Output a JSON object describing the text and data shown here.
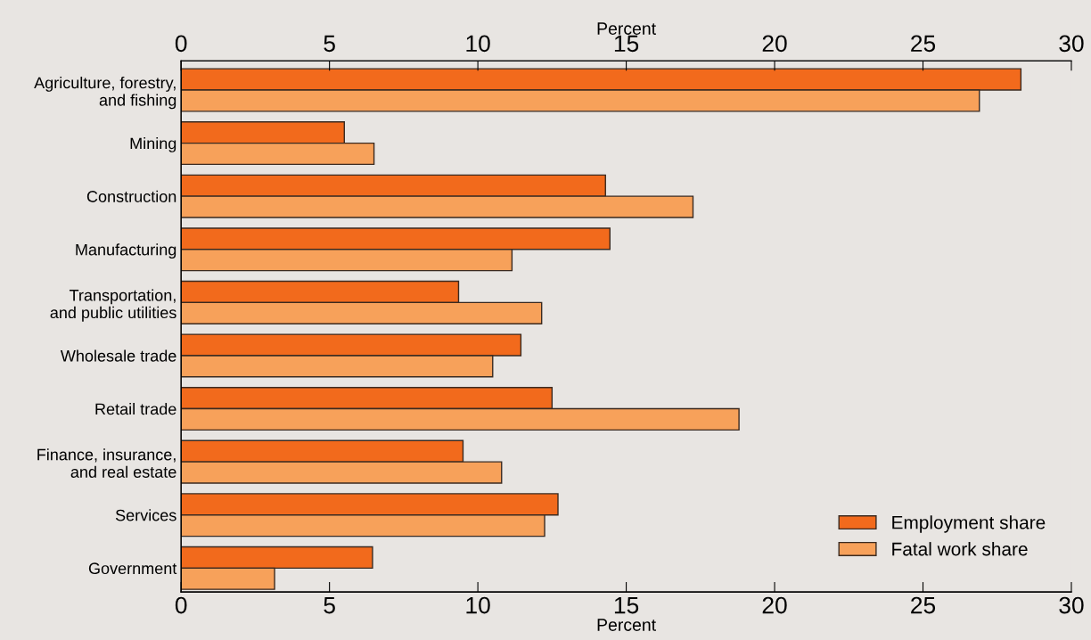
{
  "chart_data": {
    "type": "bar",
    "orientation": "horizontal",
    "categories": [
      "Agriculture, forestry,\nand fishing",
      "Mining",
      "Construction",
      "Manufacturing",
      "Transportation,\nand public utilities",
      "Wholesale trade",
      "Retail trade",
      "Finance, insurance,\nand real estate",
      "Services",
      "Government"
    ],
    "series": [
      {
        "name": "Employment share",
        "color": "#f26a1c",
        "values": [
          28.3,
          5.5,
          14.3,
          14.45,
          9.35,
          11.45,
          12.5,
          9.5,
          12.7,
          6.45
        ]
      },
      {
        "name": "Fatal work share",
        "color": "#f7a15a",
        "values": [
          26.9,
          6.5,
          17.25,
          11.15,
          12.15,
          10.5,
          18.8,
          10.8,
          12.25,
          3.15
        ]
      }
    ],
    "xlabel": "Percent",
    "xlim": [
      0,
      30
    ],
    "xticks": [
      0,
      5,
      10,
      15,
      20,
      25,
      30
    ],
    "x2label": "Percent",
    "x2lim": [
      0,
      30
    ],
    "x2ticks": [
      0,
      5,
      10,
      15,
      20,
      25,
      30
    ],
    "legend": "bottom right",
    "grid": false
  }
}
